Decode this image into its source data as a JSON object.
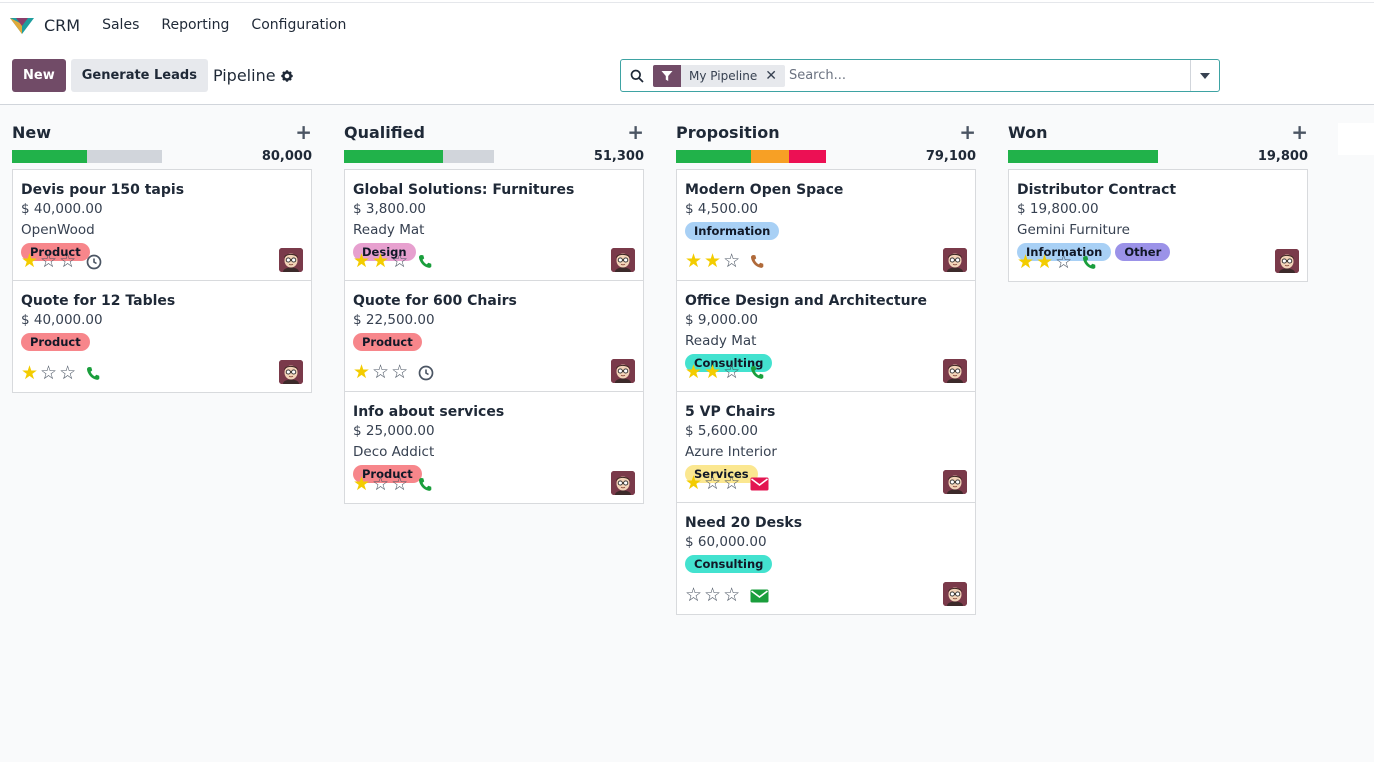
{
  "app": {
    "name": "CRM"
  },
  "menu": [
    "Sales",
    "Reporting",
    "Configuration"
  ],
  "controls": {
    "new_label": "New",
    "generate_label": "Generate Leads",
    "breadcrumb": "Pipeline"
  },
  "search": {
    "facet": "My Pipeline",
    "placeholder": "Search..."
  },
  "columns": [
    {
      "title": "New",
      "total": "80,000",
      "progress": [
        {
          "color": "#21b24a",
          "pct": 50
        }
      ],
      "cards": [
        {
          "title": "Devis pour 150 tapis",
          "amount": "$ 40,000.00",
          "company": "OpenWood",
          "tags": [
            {
              "label": "Product",
              "color": "#f7868b"
            }
          ],
          "stars": 1,
          "activity": "clock-icon"
        },
        {
          "title": "Quote for 12 Tables",
          "amount": "$ 40,000.00",
          "company": "",
          "tags": [
            {
              "label": "Product",
              "color": "#f7868b"
            }
          ],
          "stars": 1,
          "activity": "phone-icon-green"
        }
      ]
    },
    {
      "title": "Qualified",
      "total": "51,300",
      "progress": [
        {
          "color": "#21b24a",
          "pct": 66
        }
      ],
      "cards": [
        {
          "title": "Global Solutions: Furnitures",
          "amount": "$ 3,800.00",
          "company": "Ready Mat",
          "tags": [
            {
              "label": "Design",
              "color": "#e7a0cf"
            }
          ],
          "stars": 2,
          "activity": "phone-icon-green"
        },
        {
          "title": "Quote for 600 Chairs",
          "amount": "$ 22,500.00",
          "company": "",
          "tags": [
            {
              "label": "Product",
              "color": "#f7868b"
            }
          ],
          "stars": 1,
          "activity": "clock-icon"
        },
        {
          "title": "Info about services",
          "amount": "$ 25,000.00",
          "company": "Deco Addict",
          "tags": [
            {
              "label": "Product",
              "color": "#f7868b"
            }
          ],
          "stars": 1,
          "activity": "phone-icon-green"
        }
      ]
    },
    {
      "title": "Proposition",
      "total": "79,100",
      "progress": [
        {
          "color": "#21b24a",
          "pct": 50
        },
        {
          "color": "#f7a025",
          "pct": 25
        },
        {
          "color": "#ec1054",
          "pct": 25
        }
      ],
      "cards": [
        {
          "title": "Modern Open Space",
          "amount": "$ 4,500.00",
          "company": "",
          "tags": [
            {
              "label": "Information",
              "color": "#a8d0f5"
            }
          ],
          "stars": 2,
          "activity": "phone-icon-orange"
        },
        {
          "title": "Office Design and Architecture",
          "amount": "$ 9,000.00",
          "company": "Ready Mat",
          "tags": [
            {
              "label": "Consulting",
              "color": "#43e2cf"
            }
          ],
          "stars": 2,
          "activity": "phone-icon-green"
        },
        {
          "title": "5 VP Chairs",
          "amount": "$ 5,600.00",
          "company": "Azure Interior",
          "tags": [
            {
              "label": "Services",
              "color": "#fbe790"
            }
          ],
          "stars": 1,
          "activity": "envelope-icon-red"
        },
        {
          "title": "Need 20 Desks",
          "amount": "$ 60,000.00",
          "company": "",
          "tags": [
            {
              "label": "Consulting",
              "color": "#43e2cf"
            }
          ],
          "stars": 0,
          "activity": "envelope-icon-green"
        }
      ]
    },
    {
      "title": "Won",
      "total": "19,800",
      "progress": [
        {
          "color": "#21b24a",
          "pct": 100
        }
      ],
      "cards": [
        {
          "title": "Distributor Contract",
          "amount": "$ 19,800.00",
          "company": "Gemini Furniture",
          "tags": [
            {
              "label": "Information",
              "color": "#a8d0f5"
            },
            {
              "label": "Other",
              "color": "#9b92e8"
            }
          ],
          "stars": 2,
          "activity": "phone-icon-green"
        }
      ]
    }
  ]
}
